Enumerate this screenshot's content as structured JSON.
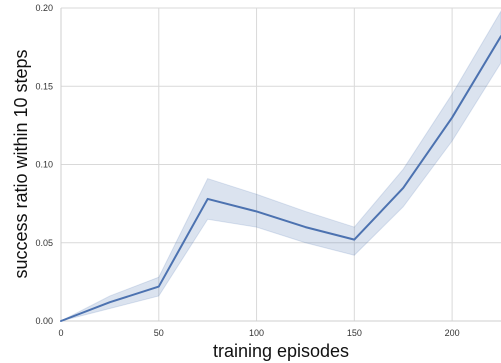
{
  "chart_data": {
    "type": "line",
    "xlabel": "training episodes",
    "ylabel": "success ratio within 10 steps",
    "xlim": [
      0,
      225
    ],
    "ylim": [
      0,
      0.2
    ],
    "xticks": [
      0,
      50,
      100,
      150,
      200
    ],
    "yticks": [
      0.0,
      0.05,
      0.1,
      0.15,
      0.2
    ],
    "xtick_labels": [
      "0",
      "50",
      "100",
      "150",
      "200"
    ],
    "ytick_labels": [
      "0.00",
      "0.05",
      "0.10",
      "0.15",
      "0.20"
    ],
    "grid": true,
    "legend": false,
    "series": [
      {
        "x": [
          0,
          25,
          50,
          75,
          100,
          125,
          150,
          175,
          200,
          225
        ],
        "y": [
          0.0,
          0.012,
          0.022,
          0.078,
          0.07,
          0.06,
          0.052,
          0.085,
          0.13,
          0.182
        ],
        "lower": [
          0.0,
          0.008,
          0.016,
          0.065,
          0.06,
          0.05,
          0.042,
          0.073,
          0.115,
          0.165
        ],
        "upper": [
          0.0,
          0.016,
          0.028,
          0.091,
          0.081,
          0.07,
          0.06,
          0.097,
          0.145,
          0.198
        ],
        "color": "#4c72b0",
        "band_color": "#4c72b0"
      }
    ]
  },
  "colors": {
    "grid": "#d9d9d9",
    "axis": "#cfcfcf",
    "background": "#ffffff"
  }
}
